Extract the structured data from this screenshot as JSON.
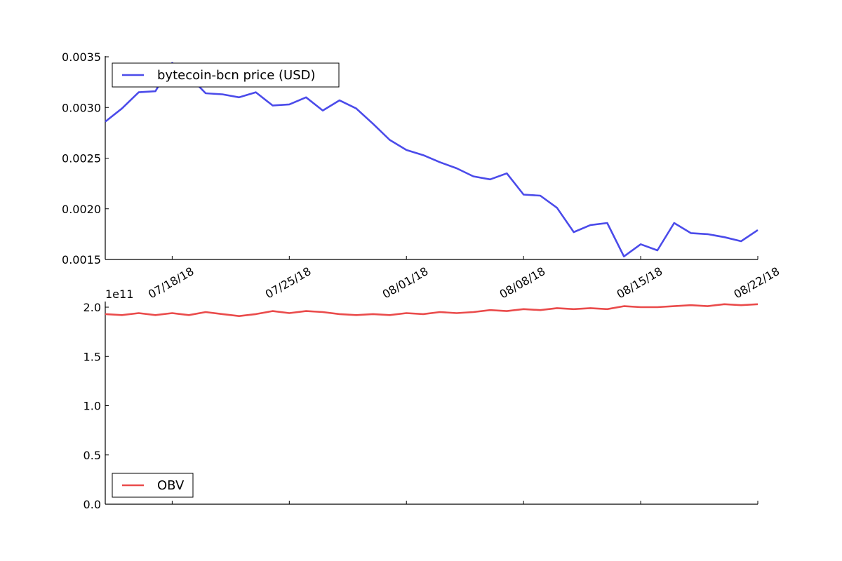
{
  "chart_data": [
    {
      "type": "line",
      "x": [
        "07/14/18",
        "07/15/18",
        "07/16/18",
        "07/17/18",
        "07/18/18",
        "07/19/18",
        "07/20/18",
        "07/21/18",
        "07/22/18",
        "07/23/18",
        "07/24/18",
        "07/25/18",
        "07/26/18",
        "07/27/18",
        "07/28/18",
        "07/29/18",
        "07/30/18",
        "07/31/18",
        "08/01/18",
        "08/02/18",
        "08/03/18",
        "08/04/18",
        "08/05/18",
        "08/06/18",
        "08/07/18",
        "08/08/18",
        "08/09/18",
        "08/10/18",
        "08/11/18",
        "08/12/18",
        "08/13/18",
        "08/14/18",
        "08/15/18",
        "08/16/18",
        "08/17/18",
        "08/18/18",
        "08/19/18",
        "08/20/18",
        "08/21/18",
        "08/22/18"
      ],
      "series": [
        {
          "name": "bytecoin-bcn price (USD)",
          "color": "#4b4bea",
          "values": [
            0.00286,
            0.00299,
            0.00315,
            0.00316,
            0.00344,
            0.00331,
            0.00314,
            0.00313,
            0.0031,
            0.00315,
            0.00302,
            0.00303,
            0.0031,
            0.00297,
            0.00307,
            0.00299,
            0.00284,
            0.00268,
            0.00258,
            0.00253,
            0.00246,
            0.0024,
            0.00232,
            0.00229,
            0.00235,
            0.00214,
            0.00213,
            0.00201,
            0.00177,
            0.00184,
            0.00186,
            0.00153,
            0.00165,
            0.00159,
            0.00186,
            0.00176,
            0.00175,
            0.00172,
            0.00168,
            0.00179
          ]
        }
      ],
      "x_ticks": [
        "07/18/18",
        "07/25/18",
        "08/01/18",
        "08/08/18",
        "08/15/18",
        "08/22/18"
      ],
      "y_ticks": [
        "0.0015",
        "0.0020",
        "0.0025",
        "0.0030",
        "0.0035"
      ],
      "ylim": [
        0.0015,
        0.0035
      ],
      "legend_position": "top-left",
      "title": "",
      "xlabel": "",
      "ylabel": ""
    },
    {
      "type": "line",
      "x": [
        "07/14/18",
        "07/15/18",
        "07/16/18",
        "07/17/18",
        "07/18/18",
        "07/19/18",
        "07/20/18",
        "07/21/18",
        "07/22/18",
        "07/23/18",
        "07/24/18",
        "07/25/18",
        "07/26/18",
        "07/27/18",
        "07/28/18",
        "07/29/18",
        "07/30/18",
        "07/31/18",
        "08/01/18",
        "08/02/18",
        "08/03/18",
        "08/04/18",
        "08/05/18",
        "08/06/18",
        "08/07/18",
        "08/08/18",
        "08/09/18",
        "08/10/18",
        "08/11/18",
        "08/12/18",
        "08/13/18",
        "08/14/18",
        "08/15/18",
        "08/16/18",
        "08/17/18",
        "08/18/18",
        "08/19/18",
        "08/20/18",
        "08/21/18",
        "08/22/18"
      ],
      "series": [
        {
          "name": "OBV",
          "color": "#ea4b4b",
          "values": [
            1.93,
            1.92,
            1.94,
            1.92,
            1.94,
            1.92,
            1.95,
            1.93,
            1.91,
            1.93,
            1.96,
            1.94,
            1.96,
            1.95,
            1.93,
            1.92,
            1.93,
            1.92,
            1.94,
            1.93,
            1.95,
            1.94,
            1.95,
            1.97,
            1.96,
            1.98,
            1.97,
            1.99,
            1.98,
            1.99,
            1.98,
            2.01,
            2.0,
            2.0,
            2.01,
            2.02,
            2.01,
            2.03,
            2.02,
            2.03
          ]
        }
      ],
      "y_ticks": [
        "0.0",
        "0.5",
        "1.0",
        "1.5",
        "2.0"
      ],
      "ylim": [
        0.0,
        2.05
      ],
      "y_multiplier": "1e11",
      "legend_position": "bottom-left",
      "title": "",
      "xlabel": "",
      "ylabel": ""
    }
  ]
}
